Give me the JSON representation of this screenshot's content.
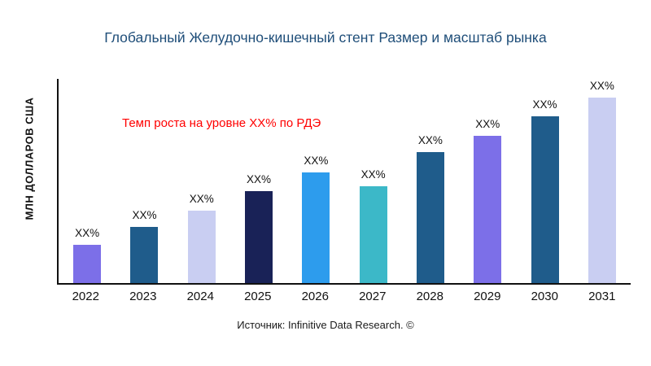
{
  "chart_data": {
    "type": "bar",
    "title": "Глобальный Желудочно-кишечный стент Размер и масштаб рынка",
    "ylabel": "МЛН ДОЛЛАРОВ США",
    "xlabel": "",
    "categories": [
      "2022",
      "2023",
      "2024",
      "2025",
      "2026",
      "2027",
      "2028",
      "2029",
      "2030",
      "2031"
    ],
    "bar_labels": [
      "XX%",
      "XX%",
      "XX%",
      "XX%",
      "XX%",
      "XX%",
      "XX%",
      "XX%",
      "XX%",
      "XX%"
    ],
    "values": [
      18.6,
      27.3,
      35.6,
      45.0,
      54.2,
      47.4,
      64.0,
      72.0,
      81.8,
      90.9
    ],
    "values_note": "bar heights as percent of plot height; numeric values not shown in chart (displayed as XX%)",
    "bar_colors": [
      "#7C6FE8",
      "#1F5C8B",
      "#C9CEF2",
      "#192257",
      "#2D9CED",
      "#3CB8C8",
      "#1F5C8B",
      "#7C6FE8",
      "#1F5C8B",
      "#C9CEF2"
    ],
    "annotation": "Темп роста на уровне XX% по РДЭ",
    "annotation_color": "#FF0000",
    "title_color": "#1F4E79",
    "source": "Источник: Infinitive Data Research. ©",
    "legend": "none",
    "grid": false
  }
}
